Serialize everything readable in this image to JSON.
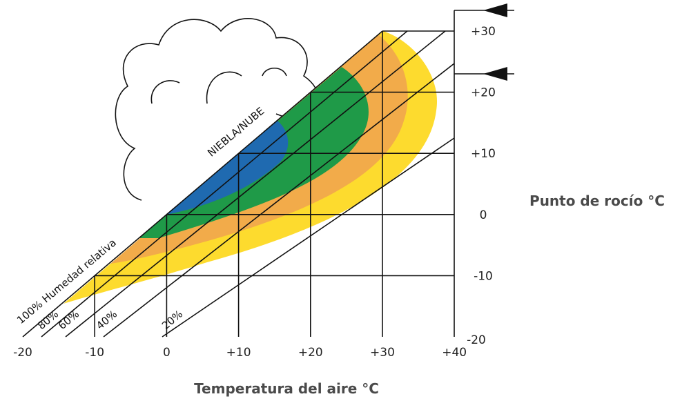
{
  "x_axis": {
    "title": "Temperatura del aire °C",
    "ticks": [
      "-20",
      "-10",
      "0",
      "+10",
      "+20",
      "+30",
      "+40"
    ]
  },
  "y_axis": {
    "title": "Punto de rocío °C",
    "ticks": [
      "+30",
      "+20",
      "+10",
      "0",
      "-10",
      "-20"
    ]
  },
  "region_label": "NIEBLA/NUBE",
  "humidity_labels": [
    "100% Humedad relativa",
    "80%",
    "60%",
    "40%",
    "20%"
  ]
}
